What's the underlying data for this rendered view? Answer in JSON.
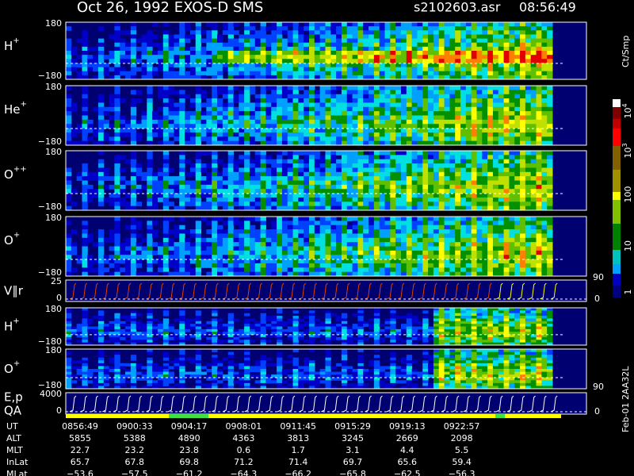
{
  "header": {
    "title": "Oct 26, 1992   EXOS-D SMS",
    "file": "s2102603.asr",
    "time": "08:56:49"
  },
  "panels": [
    {
      "label": "H",
      "sup": "+",
      "top": "180",
      "bottom": "−180"
    },
    {
      "label": "He",
      "sup": "+",
      "top": "180",
      "bottom": "−180"
    },
    {
      "label": "O",
      "sup": "++",
      "top": "180",
      "bottom": "−180"
    },
    {
      "label": "O",
      "sup": "+",
      "top": "180",
      "bottom": "−180"
    },
    {
      "label": "V∥r",
      "top": "25",
      "bottom": "0",
      "right_top": "90",
      "right_bottom": "0"
    },
    {
      "label": "H",
      "sup": "+",
      "top": "180",
      "bottom": "−180"
    },
    {
      "label": "O",
      "sup": "+",
      "top": "180",
      "bottom": "−180"
    },
    {
      "label": "E,p",
      "label2": "QA",
      "top": "4000",
      "bottom": "0",
      "right_top": "90",
      "right_bottom": "0"
    }
  ],
  "colorbar": {
    "unit": "Ct/Smp",
    "labels": [
      {
        "base": "10",
        "exp": "4"
      },
      {
        "base": "10",
        "exp": "3"
      },
      {
        "base": "100"
      },
      {
        "base": "10"
      },
      {
        "base": "1"
      }
    ]
  },
  "table": {
    "rows": [
      {
        "label": "UT",
        "values": [
          "0856:49",
          "0900:33",
          "0904:17",
          "0908:01",
          "0911:45",
          "0915:29",
          "0919:13",
          "0922:57"
        ]
      },
      {
        "label": "ALT",
        "values": [
          "5855",
          "5388",
          "4890",
          "4363",
          "3813",
          "3245",
          "2669",
          "2098"
        ]
      },
      {
        "label": "MLT",
        "values": [
          "22.7",
          "23.2",
          "23.8",
          "0.6",
          "1.7",
          "3.1",
          "4.4",
          "5.5"
        ]
      },
      {
        "label": "InLat",
        "values": [
          "65.7",
          "67.8",
          "69.8",
          "71.2",
          "71.4",
          "69.7",
          "65.6",
          "59.4"
        ]
      },
      {
        "label": "MLat",
        "values": [
          "−53.6",
          "−57.5",
          "−61.2",
          "−64.3",
          "−66.2",
          "−65.8",
          "−62.5",
          "−56.3"
        ]
      }
    ]
  },
  "footer": "Feb-01 2AA32L"
}
